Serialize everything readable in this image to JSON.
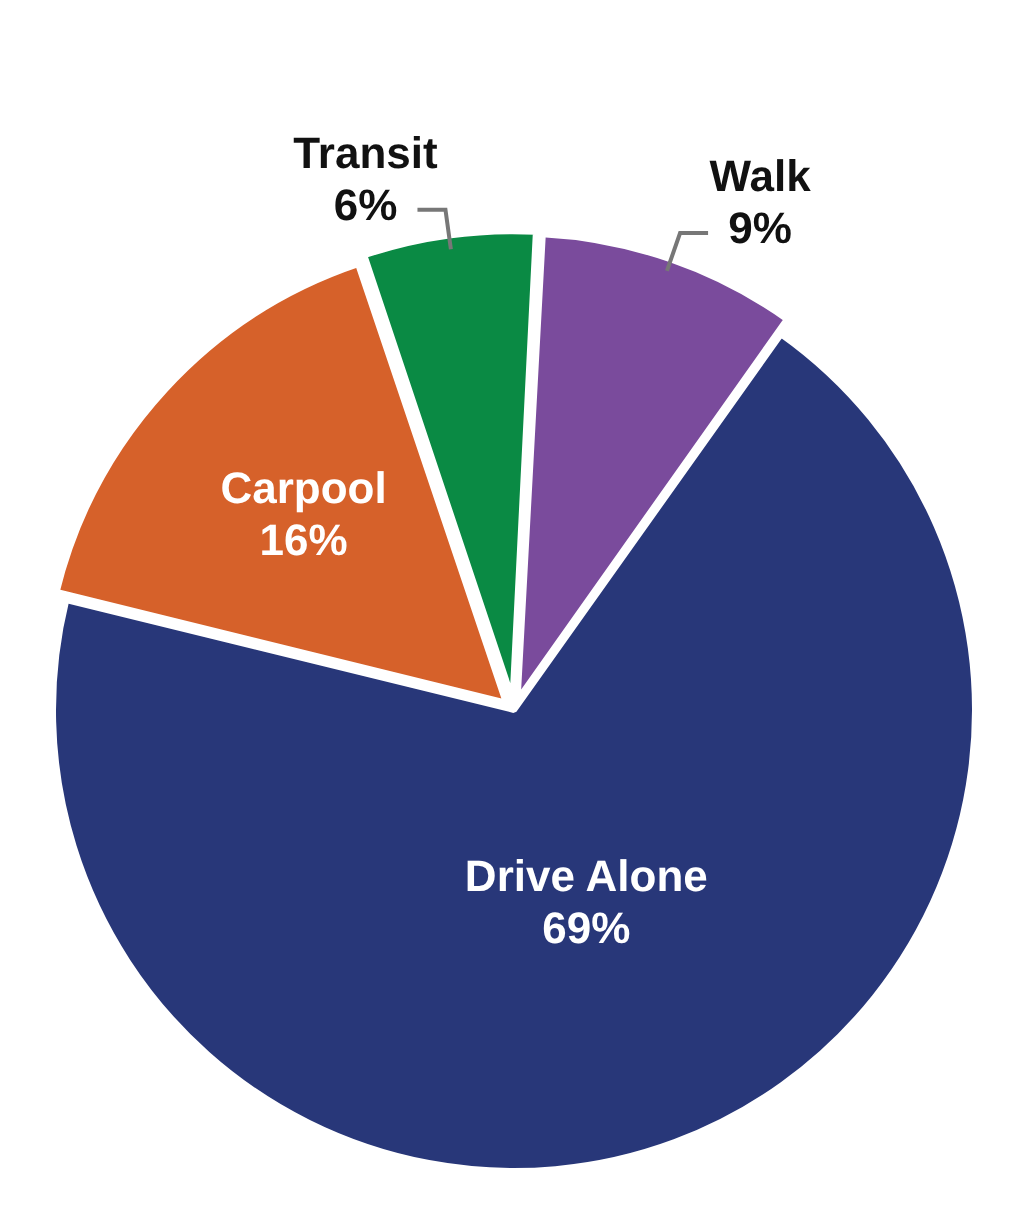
{
  "chart_data": {
    "type": "pie",
    "categories": [
      "Walk",
      "Drive Alone",
      "Carpool",
      "Transit"
    ],
    "values": [
      9,
      69,
      16,
      6
    ],
    "colors": [
      "#7a4b9c",
      "#283779",
      "#d6612a",
      "#0a8a44"
    ],
    "value_labels": [
      "9%",
      "69%",
      "16%",
      "6%"
    ],
    "legend": false
  }
}
